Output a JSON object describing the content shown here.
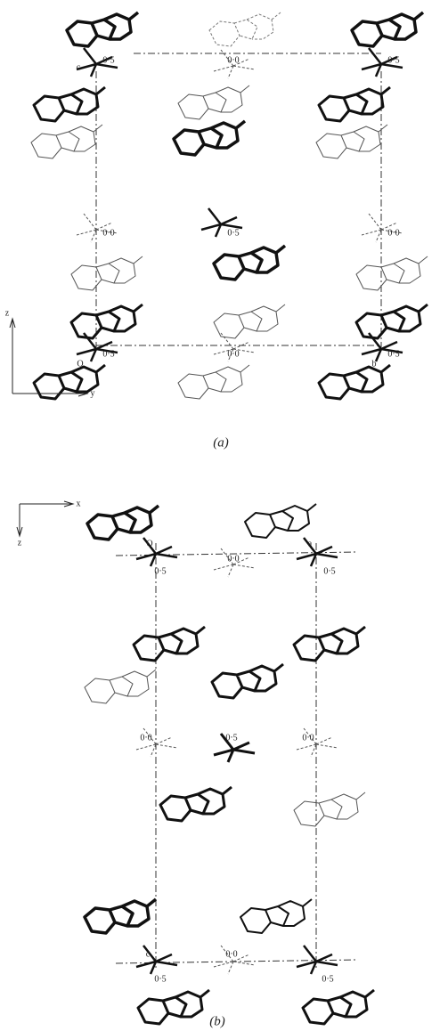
{
  "figure": {
    "panels": [
      {
        "caption": "(a)",
        "axis_labels": [
          "z",
          "y"
        ],
        "labels": [
          "0·5",
          "c",
          "0·0",
          "0·5",
          "0·0",
          "0·5",
          "0·0",
          "0·5",
          "O",
          "0·0",
          "0·5",
          "b"
        ]
      },
      {
        "caption": "(b)",
        "axis_labels": [
          "x",
          "z"
        ],
        "labels": [
          "O",
          "0·0",
          "a",
          "0·5",
          "0·5",
          "0·0",
          "0·5",
          "0·0",
          "c",
          "0·0",
          "0·5",
          "0·5"
        ]
      }
    ]
  }
}
